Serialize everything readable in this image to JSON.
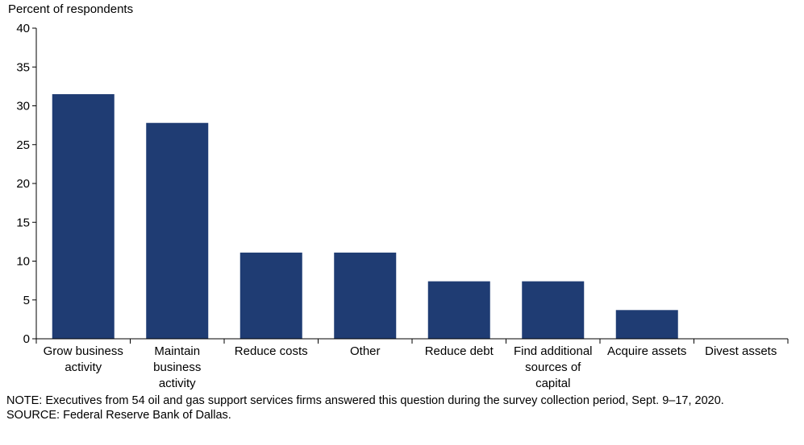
{
  "chart_data": {
    "type": "bar",
    "ylabel": "Percent of respondents",
    "ylim": [
      0,
      40
    ],
    "yticks": [
      0,
      5,
      10,
      15,
      20,
      25,
      30,
      35,
      40
    ],
    "categories": [
      [
        "Grow business",
        "activity"
      ],
      [
        "Maintain",
        "business",
        "activity"
      ],
      [
        "Reduce costs"
      ],
      [
        "Other"
      ],
      [
        "Reduce debt"
      ],
      [
        "Find additional",
        "sources of",
        "capital"
      ],
      [
        "Acquire assets"
      ],
      [
        "Divest assets"
      ]
    ],
    "values": [
      31.5,
      27.8,
      11.1,
      11.1,
      7.4,
      7.4,
      3.7,
      0
    ],
    "bar_color": "#1f3c73",
    "grid": false,
    "legend": "none"
  },
  "notes": {
    "note": "NOTE: Executives from 54 oil and gas support services firms answered this question during the survey collection period, Sept. 9–17, 2020.",
    "source": "SOURCE: Federal Reserve Bank of Dallas."
  }
}
